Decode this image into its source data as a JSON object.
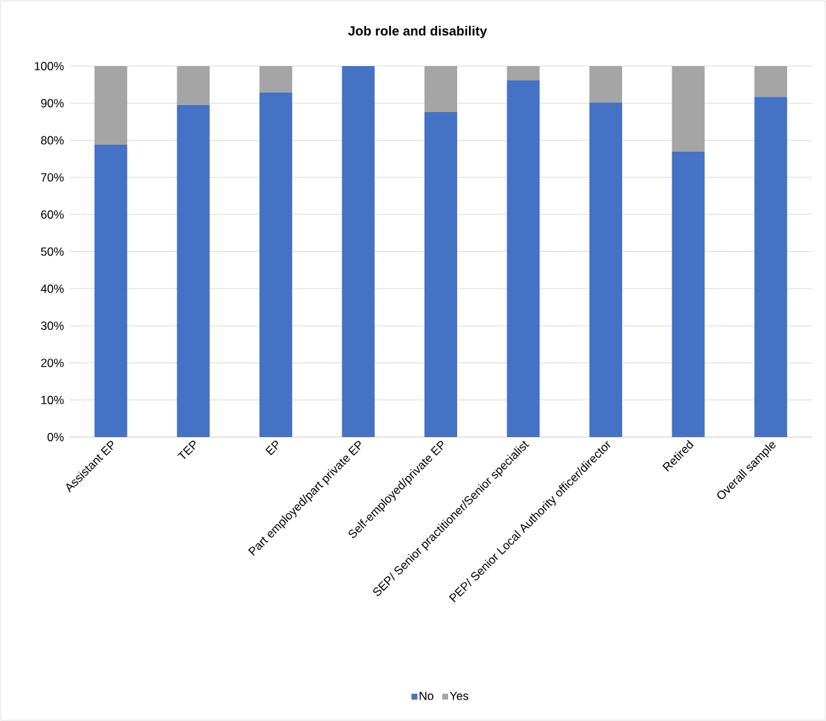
{
  "chart_data": {
    "type": "bar",
    "title": "Job role and disability",
    "stacked": true,
    "categories": [
      "Assistant EP",
      "TEP",
      "EP",
      "Part employed/part private EP",
      "Self-employed/private EP",
      "SEP/ Senior practitioner/Senior specialist",
      "PEP/ Senior Local Authority officer/director",
      "Retired",
      "Overall sample"
    ],
    "series": [
      {
        "name": "No",
        "color": "#4472c4",
        "values": [
          78.8,
          89.5,
          92.9,
          100,
          87.6,
          96.2,
          90.2,
          76.9,
          91.7
        ]
      },
      {
        "name": "Yes",
        "color": "#a5a5a5",
        "values": [
          21.2,
          10.5,
          7.1,
          0,
          12.4,
          3.8,
          9.8,
          23.1,
          8.3
        ]
      }
    ],
    "ylim": [
      0,
      100
    ],
    "yticks": [
      {
        "value": 0,
        "label": "0%"
      },
      {
        "value": 10,
        "label": "10%"
      },
      {
        "value": 20,
        "label": "20%"
      },
      {
        "value": 30,
        "label": "30%"
      },
      {
        "value": 40,
        "label": "40%"
      },
      {
        "value": 50,
        "label": "50%"
      },
      {
        "value": 60,
        "label": "60%"
      },
      {
        "value": 70,
        "label": "70%"
      },
      {
        "value": 80,
        "label": "80%"
      },
      {
        "value": 90,
        "label": "90%"
      },
      {
        "value": 100,
        "label": "100%"
      }
    ],
    "grid": "y",
    "legend": "bottom"
  }
}
